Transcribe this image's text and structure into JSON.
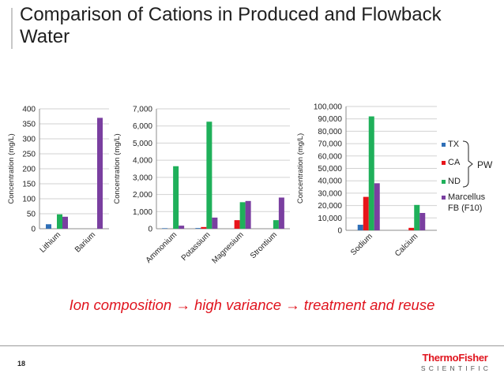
{
  "slide": {
    "title": "Comparison of Cations in Produced and Flowback Water",
    "tagline": "Ion composition → high variance → treatment and reuse",
    "page_number": "18",
    "logo_main": "ThermoFisher",
    "logo_sub": "SCIENTIFIC"
  },
  "colors": {
    "TX": "#2f6fb7",
    "CA": "#e8141a",
    "ND": "#1fb05a",
    "Marcellus FB (F10)": "#7a3fa0"
  },
  "legend": {
    "entries": [
      "TX",
      "CA",
      "ND",
      "Marcellus FB (F10)"
    ],
    "group_label": "PW",
    "group_members": [
      "TX",
      "CA",
      "ND"
    ]
  },
  "chart_data": [
    {
      "type": "bar",
      "categories": [
        "Lithium",
        "Barium"
      ],
      "series": [
        {
          "name": "TX",
          "values": [
            15,
            0
          ]
        },
        {
          "name": "CA",
          "values": [
            0,
            0
          ]
        },
        {
          "name": "ND",
          "values": [
            48,
            0
          ]
        },
        {
          "name": "Marcellus FB (F10)",
          "values": [
            40,
            370
          ]
        }
      ],
      "ylabel": "Concentration (mg/L)",
      "ylim": [
        0,
        400
      ],
      "yticks": [
        0,
        50,
        100,
        150,
        200,
        250,
        300,
        350,
        400
      ],
      "ytick_labels": [
        "0",
        "50",
        "100",
        "150",
        "200",
        "250",
        "300",
        "350",
        "400"
      ]
    },
    {
      "type": "bar",
      "categories": [
        "Ammonium",
        "Potassium",
        "Magnesium",
        "Strontium"
      ],
      "series": [
        {
          "name": "TX",
          "values": [
            30,
            40,
            0,
            0
          ]
        },
        {
          "name": "CA",
          "values": [
            0,
            100,
            500,
            0
          ]
        },
        {
          "name": "ND",
          "values": [
            3650,
            6250,
            1550,
            500
          ]
        },
        {
          "name": "Marcellus FB (F10)",
          "values": [
            180,
            650,
            1620,
            1820
          ]
        }
      ],
      "ylabel": "Concentration (mg/L)",
      "ylim": [
        0,
        7000
      ],
      "yticks": [
        0,
        1000,
        2000,
        3000,
        4000,
        5000,
        6000,
        7000
      ],
      "ytick_labels": [
        "0",
        "1,000",
        "2,000",
        "3,000",
        "4,000",
        "5,000",
        "6,000",
        "7,000"
      ]
    },
    {
      "type": "bar",
      "categories": [
        "Sodium",
        "Calcium"
      ],
      "series": [
        {
          "name": "TX",
          "values": [
            4500,
            0
          ]
        },
        {
          "name": "CA",
          "values": [
            27000,
            2000
          ]
        },
        {
          "name": "ND",
          "values": [
            92000,
            20500
          ]
        },
        {
          "name": "Marcellus FB (F10)",
          "values": [
            38000,
            14000
          ]
        }
      ],
      "ylabel": "Concentration (mg/L)",
      "ylim": [
        0,
        100000
      ],
      "yticks": [
        0,
        10000,
        20000,
        30000,
        40000,
        50000,
        60000,
        70000,
        80000,
        90000,
        100000
      ],
      "ytick_labels": [
        "0",
        "10,000",
        "20,000",
        "30,000",
        "40,000",
        "50,000",
        "60,000",
        "70,000",
        "80,000",
        "90,000",
        "100,000"
      ]
    }
  ]
}
